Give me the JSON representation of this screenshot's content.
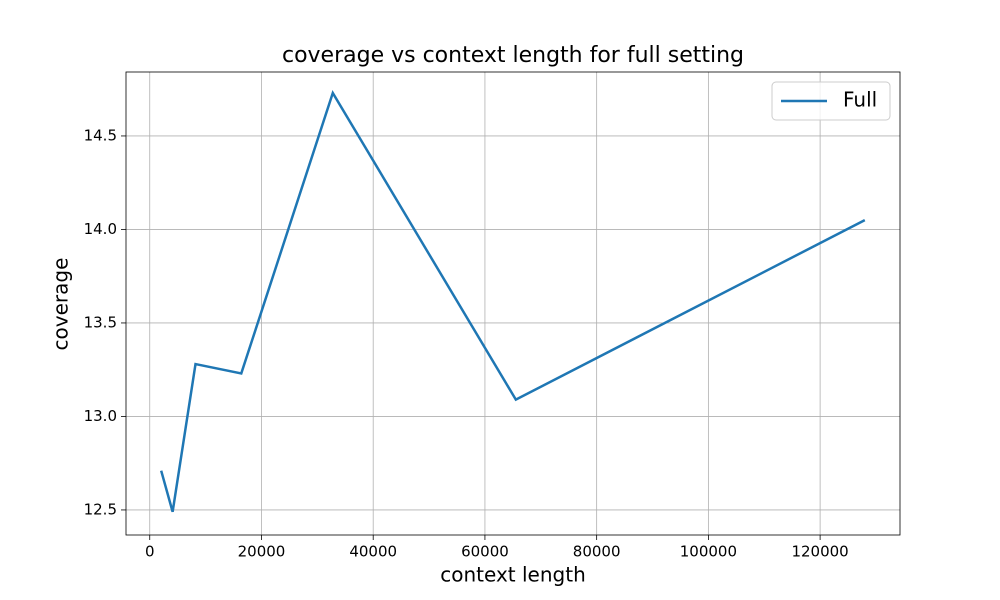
{
  "chart_data": {
    "type": "line",
    "title": "coverage vs context length for full setting",
    "x_label": "context length",
    "y_label": "coverage",
    "x": [
      2048,
      4096,
      8192,
      16384,
      32768,
      65536,
      128000
    ],
    "series": [
      {
        "name": "Full",
        "color": "#1f77b4",
        "values": [
          12.71,
          12.49,
          13.28,
          13.23,
          14.73,
          13.09,
          14.05
        ]
      }
    ],
    "xlim": [
      -4250,
      134300
    ],
    "ylim": [
      12.366,
      14.842
    ],
    "xticks": [
      0,
      20000,
      40000,
      60000,
      80000,
      100000,
      120000
    ],
    "yticks": [
      12.5,
      {
        "value": 13,
        "label": "13.0"
      },
      13.5,
      {
        "value": 14,
        "label": "14.0"
      },
      14.5
    ],
    "grid": true,
    "legend": "upper right"
  }
}
